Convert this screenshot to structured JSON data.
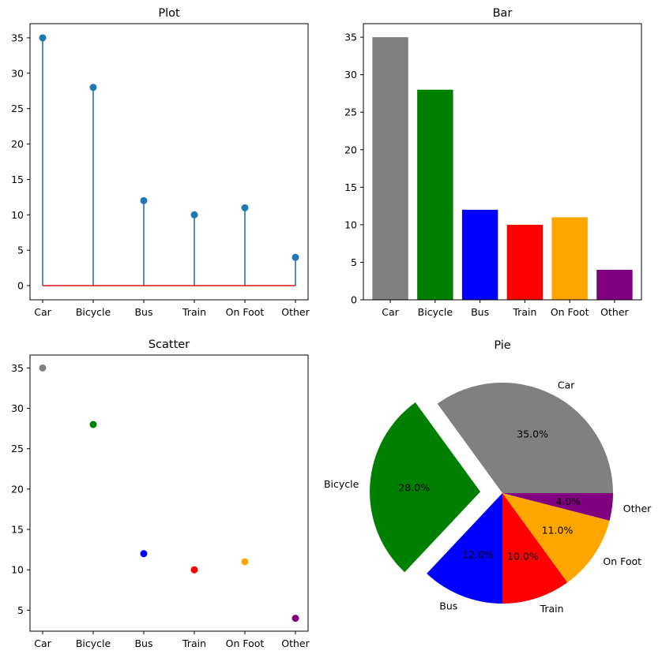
{
  "chart_data": [
    {
      "type": "stem",
      "title": "Plot",
      "categories": [
        "Car",
        "Bicycle",
        "Bus",
        "Train",
        "On Foot",
        "Other"
      ],
      "values": [
        35,
        28,
        12,
        10,
        11,
        4
      ],
      "ylim": [
        -2,
        37
      ],
      "yticks": [
        0,
        5,
        10,
        15,
        20,
        25,
        30,
        35
      ],
      "color": "#1f77b4",
      "baseline_color": "#d62728"
    },
    {
      "type": "bar",
      "title": "Bar",
      "categories": [
        "Car",
        "Bicycle",
        "Bus",
        "Train",
        "On Foot",
        "Other"
      ],
      "values": [
        35,
        28,
        12,
        10,
        11,
        4
      ],
      "ylim": [
        0,
        36.8
      ],
      "yticks": [
        0,
        5,
        10,
        15,
        20,
        25,
        30,
        35
      ],
      "colors": [
        "#808080",
        "#008000",
        "#0000ff",
        "#ff0000",
        "#ffa500",
        "#800080"
      ]
    },
    {
      "type": "scatter",
      "title": "Scatter",
      "categories": [
        "Car",
        "Bicycle",
        "Bus",
        "Train",
        "On Foot",
        "Other"
      ],
      "values": [
        35,
        28,
        12,
        10,
        11,
        4
      ],
      "ylim": [
        2.4,
        36.6
      ],
      "yticks": [
        5,
        10,
        15,
        20,
        25,
        30,
        35
      ],
      "colors": [
        "#808080",
        "#008000",
        "#0000ff",
        "#ff0000",
        "#ffa500",
        "#800080"
      ]
    },
    {
      "type": "pie",
      "title": "Pie",
      "labels": [
        "Car",
        "Bicycle",
        "Bus",
        "Train",
        "On Foot",
        "Other"
      ],
      "values": [
        35,
        28,
        12,
        10,
        11,
        4
      ],
      "percent_labels": [
        "35.0%",
        "28.0%",
        "12.0%",
        "10.0%",
        "11.0%",
        "4.0%"
      ],
      "colors": [
        "#808080",
        "#008000",
        "#0000ff",
        "#ff0000",
        "#ffa500",
        "#800080"
      ],
      "explode": [
        0,
        0.2,
        0,
        0,
        0,
        0
      ],
      "start_angle_deg": 0
    }
  ]
}
